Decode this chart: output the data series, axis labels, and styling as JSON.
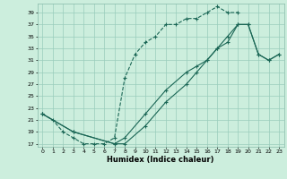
{
  "xlabel": "Humidex (Indice chaleur)",
  "bg_color": "#cceedd",
  "grid_color": "#99ccbb",
  "line_color": "#1a6655",
  "xlim": [
    -0.5,
    23.5
  ],
  "ylim": [
    16.5,
    40.5
  ],
  "yticks": [
    17,
    19,
    21,
    23,
    25,
    27,
    29,
    31,
    33,
    35,
    37,
    39
  ],
  "xticks": [
    0,
    1,
    2,
    3,
    4,
    5,
    6,
    7,
    8,
    9,
    10,
    11,
    12,
    13,
    14,
    15,
    16,
    17,
    18,
    19,
    20,
    21,
    22,
    23
  ],
  "line1_x": [
    0,
    1,
    2,
    3,
    4,
    5,
    6,
    7,
    8,
    9,
    10,
    11,
    12,
    13,
    14,
    15,
    16,
    17,
    18,
    19
  ],
  "line1_y": [
    22,
    21,
    19,
    18,
    17,
    17,
    17,
    18,
    28,
    32,
    34,
    35,
    37,
    37,
    38,
    38,
    39,
    40,
    39,
    39
  ],
  "line2_x": [
    0,
    3,
    7,
    8,
    10,
    12,
    14,
    15,
    16,
    17,
    18,
    19,
    20,
    21,
    22,
    23
  ],
  "line2_y": [
    22,
    19,
    17,
    18,
    22,
    26,
    29,
    30,
    31,
    33,
    34,
    37,
    37,
    32,
    31,
    32
  ],
  "line3_x": [
    0,
    3,
    7,
    8,
    10,
    12,
    14,
    15,
    16,
    17,
    18,
    19,
    20,
    21,
    22,
    23
  ],
  "line3_y": [
    22,
    19,
    17,
    17,
    20,
    24,
    27,
    29,
    31,
    33,
    35,
    37,
    37,
    32,
    31,
    32
  ]
}
